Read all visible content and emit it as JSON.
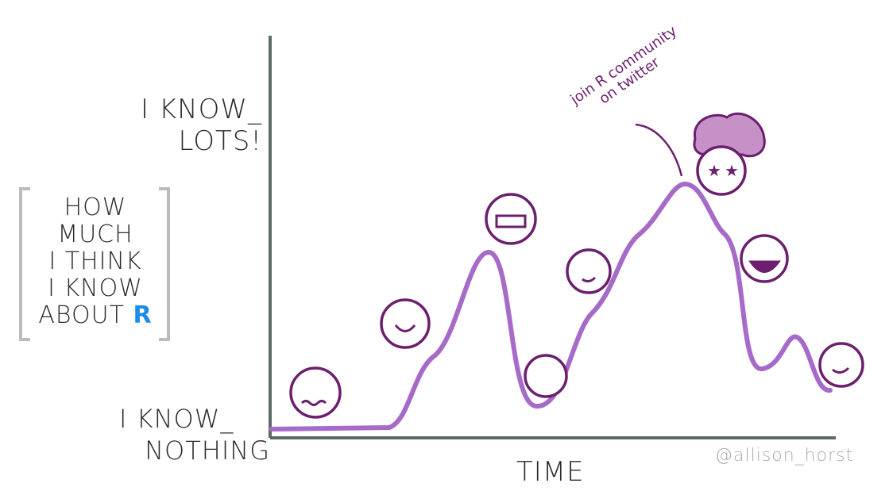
{
  "y_axis": {
    "top_label": [
      "I KNOW_",
      "LOTS!"
    ],
    "bottom_label": [
      "I KNOW_",
      "NOTHING"
    ],
    "title": [
      "HOW",
      "MUCH",
      "I THINK",
      "I KNOW",
      "ABOUT"
    ],
    "title_highlight": "R"
  },
  "x_axis": {
    "title": "TIME"
  },
  "annotation": [
    "join R community",
    "on twitter"
  ],
  "credit": "@allison_horst",
  "colors": {
    "curve": "#a66bc9",
    "faces": "#6b1f6e",
    "axis": "#5c6b67",
    "r_highlight": "#1d8ce8",
    "hair": "#c591c7"
  }
}
